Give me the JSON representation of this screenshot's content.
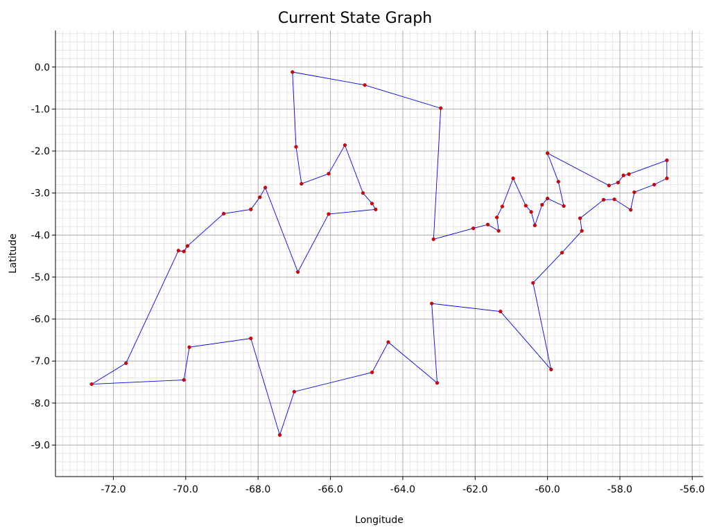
{
  "chart_data": {
    "type": "line",
    "title": "Current State Graph",
    "xlabel": "Longitude",
    "ylabel": "Latitude",
    "xlim": [
      -73.6,
      -55.7
    ],
    "ylim": [
      -9.75,
      0.87
    ],
    "x_ticks": [
      -72.0,
      -70.0,
      -68.0,
      -66.0,
      -64.0,
      -62.0,
      -60.0,
      -58.0,
      -56.0
    ],
    "y_ticks": [
      0.0,
      -1.0,
      -2.0,
      -3.0,
      -4.0,
      -5.0,
      -6.0,
      -7.0,
      -8.0,
      -9.0
    ],
    "x_tick_labels": [
      "-72.0",
      "-70.0",
      "-68.0",
      "-66.0",
      "-64.0",
      "-62.0",
      "-60.0",
      "-58.0",
      "-56.0"
    ],
    "y_tick_labels": [
      "0.0",
      "-1.0",
      "-2.0",
      "-3.0",
      "-4.0",
      "-5.0",
      "-6.0",
      "-7.0",
      "-8.0",
      "-9.0"
    ],
    "grid": true,
    "minor_grid": true,
    "closed_path": true,
    "line_color": "#0000ee",
    "marker_color": "#dd0000",
    "series": [
      {
        "points": [
          [
            -67.05,
            -0.12
          ],
          [
            -65.05,
            -0.43
          ],
          [
            -62.95,
            -0.98
          ],
          [
            -63.15,
            -4.1
          ],
          [
            -62.05,
            -3.84
          ],
          [
            -61.65,
            -3.75
          ],
          [
            -61.35,
            -3.9
          ],
          [
            -61.4,
            -3.58
          ],
          [
            -61.25,
            -3.32
          ],
          [
            -60.95,
            -2.65
          ],
          [
            -60.6,
            -3.3
          ],
          [
            -60.45,
            -3.45
          ],
          [
            -60.35,
            -3.77
          ],
          [
            -60.15,
            -3.28
          ],
          [
            -60.0,
            -3.13
          ],
          [
            -59.55,
            -3.31
          ],
          [
            -59.7,
            -2.73
          ],
          [
            -60.0,
            -2.05
          ],
          [
            -58.3,
            -2.82
          ],
          [
            -58.05,
            -2.75
          ],
          [
            -57.9,
            -2.58
          ],
          [
            -57.75,
            -2.55
          ],
          [
            -56.7,
            -2.22
          ],
          [
            -56.7,
            -2.65
          ],
          [
            -57.05,
            -2.8
          ],
          [
            -57.6,
            -2.98
          ],
          [
            -57.7,
            -3.4
          ],
          [
            -58.15,
            -3.15
          ],
          [
            -58.45,
            -3.16
          ],
          [
            -59.1,
            -3.6
          ],
          [
            -59.05,
            -3.9
          ],
          [
            -59.6,
            -4.42
          ],
          [
            -60.4,
            -5.14
          ],
          [
            -59.9,
            -7.2
          ],
          [
            -61.3,
            -5.82
          ],
          [
            -63.2,
            -5.63
          ],
          [
            -63.05,
            -7.52
          ],
          [
            -64.4,
            -6.55
          ],
          [
            -64.85,
            -7.27
          ],
          [
            -67.0,
            -7.73
          ],
          [
            -67.4,
            -8.76
          ],
          [
            -68.2,
            -6.46
          ],
          [
            -69.9,
            -6.67
          ],
          [
            -70.05,
            -7.45
          ],
          [
            -72.6,
            -7.55
          ],
          [
            -71.65,
            -7.05
          ],
          [
            -70.2,
            -4.37
          ],
          [
            -70.05,
            -4.39
          ],
          [
            -69.95,
            -4.26
          ],
          [
            -68.95,
            -3.49
          ],
          [
            -68.2,
            -3.39
          ],
          [
            -67.95,
            -3.1
          ],
          [
            -67.8,
            -2.87
          ],
          [
            -66.9,
            -4.88
          ],
          [
            -66.05,
            -3.5
          ],
          [
            -64.75,
            -3.39
          ],
          [
            -64.85,
            -3.25
          ],
          [
            -65.1,
            -3.0
          ],
          [
            -65.6,
            -1.86
          ],
          [
            -66.05,
            -2.54
          ],
          [
            -66.8,
            -2.78
          ],
          [
            -66.95,
            -1.9
          ]
        ]
      }
    ]
  }
}
